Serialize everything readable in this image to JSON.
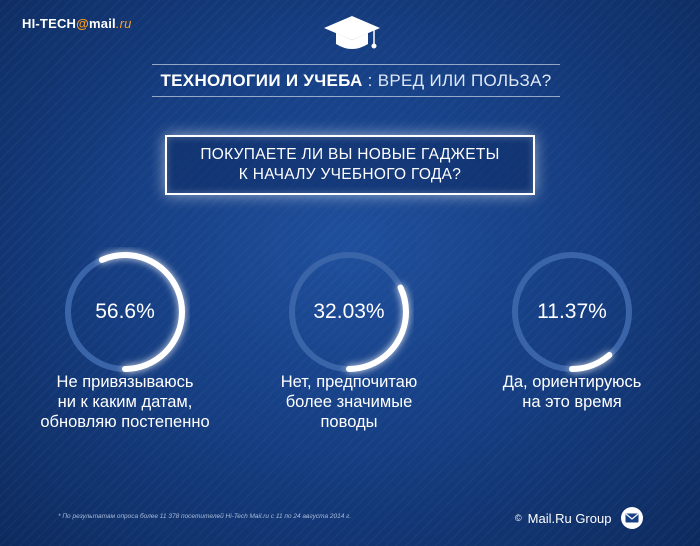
{
  "logo": {
    "part1": "HI-TECH",
    "at": "@",
    "part2": "mail",
    "part3": ".ru"
  },
  "header": {
    "title_strong": "ТЕХНОЛОГИИ И УЧЕБА",
    "title_light": " : ВРЕД ИЛИ ПОЛЬЗА?"
  },
  "question": {
    "line1": "ПОКУПАЕТЕ ЛИ ВЫ НОВЫЕ ГАДЖЕТЫ",
    "line2": "К НАЧАЛУ УЧЕБНОГО ГОДА?"
  },
  "chart_data": {
    "type": "pie",
    "title": "ПОКУПАЕТЕ ЛИ ВЫ НОВЫЕ ГАДЖЕТЫ К НАЧАЛУ УЧЕБНОГО ГОДА?",
    "categories": [
      "Не привязываюсь ни к каким датам, обновляю постепенно",
      "Нет, предпочитаю более значимые поводы",
      "Да, ориентируюсь на это время"
    ],
    "values": [
      56.6,
      32.03,
      11.37
    ],
    "value_labels": [
      "56.6%",
      "32.03%",
      "11.37%"
    ],
    "label_lines": [
      [
        "Не привязываюсь",
        "ни к каким датам,",
        "обновляю постепенно"
      ],
      [
        "Нет, предпочитаю",
        "более значимые",
        "поводы"
      ],
      [
        "Да, ориентируюсь",
        "на это время"
      ]
    ]
  },
  "footnote": "* По результатам опроса более 11 378 посетителей Hi-Tech Mail.ru с 11 по 24 августа 2014 г.",
  "brand": {
    "symbol": "©",
    "name": "Mail.Ru Group"
  },
  "colors": {
    "background": "#163f84",
    "arc": "#ffffff",
    "track": "#3a64a8",
    "accent": "#ff9f1a"
  }
}
